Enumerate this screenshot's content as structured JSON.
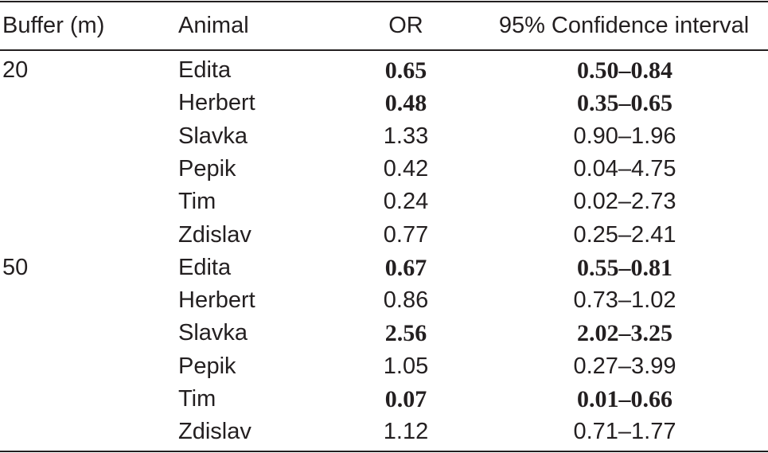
{
  "table": {
    "headers": {
      "buffer": "Buffer (m)",
      "animal": "Animal",
      "or": "OR",
      "ci": "95% Confidence interval"
    },
    "rows": [
      {
        "buffer": "20",
        "animal": "Edita",
        "or": "0.65",
        "ci": "0.50–0.84",
        "significant": true
      },
      {
        "buffer": "",
        "animal": "Herbert",
        "or": "0.48",
        "ci": "0.35–0.65",
        "significant": true
      },
      {
        "buffer": "",
        "animal": "Slavka",
        "or": "1.33",
        "ci": "0.90–1.96",
        "significant": false
      },
      {
        "buffer": "",
        "animal": "Pepik",
        "or": "0.42",
        "ci": "0.04–4.75",
        "significant": false
      },
      {
        "buffer": "",
        "animal": "Tim",
        "or": "0.24",
        "ci": "0.02–2.73",
        "significant": false
      },
      {
        "buffer": "",
        "animal": "Zdislav",
        "or": "0.77",
        "ci": "0.25–2.41",
        "significant": false
      },
      {
        "buffer": "50",
        "animal": "Edita",
        "or": "0.67",
        "ci": "0.55–0.81",
        "significant": true
      },
      {
        "buffer": "",
        "animal": "Herbert",
        "or": "0.86",
        "ci": "0.73–1.02",
        "significant": false
      },
      {
        "buffer": "",
        "animal": "Slavka",
        "or": "2.56",
        "ci": "2.02–3.25",
        "significant": true
      },
      {
        "buffer": "",
        "animal": "Pepik",
        "or": "1.05",
        "ci": "0.27–3.99",
        "significant": false
      },
      {
        "buffer": "",
        "animal": "Tim",
        "or": "0.07",
        "ci": "0.01–0.66",
        "significant": true
      },
      {
        "buffer": "",
        "animal": "Zdislav",
        "or": "1.12",
        "ci": "0.71–1.77",
        "significant": false
      }
    ]
  }
}
